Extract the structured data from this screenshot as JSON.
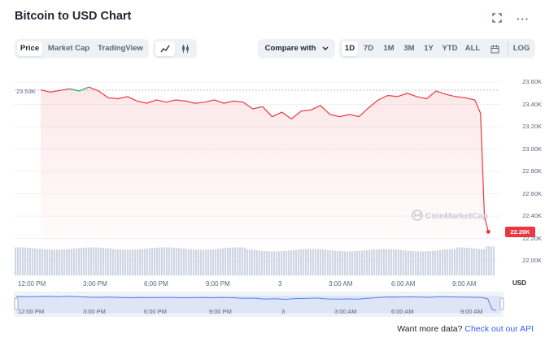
{
  "header": {
    "title": "Bitcoin to USD Chart",
    "fullscreen_icon": "fullscreen-icon",
    "more_icon": "more-icon",
    "more_glyph": "···"
  },
  "toolbar": {
    "view_tabs": [
      "Price",
      "Market Cap",
      "TradingView"
    ],
    "active_view": "Price",
    "chart_type_icons": [
      "line-chart-icon",
      "candlestick-icon"
    ],
    "compare_label": "Compare with",
    "ranges": [
      "1D",
      "7D",
      "1M",
      "3M",
      "1Y",
      "YTD",
      "ALL"
    ],
    "active_range": "1D",
    "calendar_icon": "calendar-icon",
    "log_label": "LOG"
  },
  "chart": {
    "start_label": "23.53K",
    "current_price_label": "22.26K",
    "watermark": "CoinMarketCap",
    "currency_label": "USD",
    "colors": {
      "line_down": "#ea3943",
      "line_up": "#16c784",
      "volume": "#cfd6e4",
      "navigator": "#5b7ee5"
    }
  },
  "chart_data": {
    "type": "line",
    "title": "Bitcoin to USD Chart",
    "y_tick_labels": [
      "23.60K",
      "23.40K",
      "23.20K",
      "23.00K",
      "22.80K",
      "22.60K",
      "22.40K",
      "22.20K",
      "22.00K"
    ],
    "ylim": [
      22000,
      23600
    ],
    "x_tick_labels": [
      "12:00 PM",
      "3:00 PM",
      "6:00 PM",
      "9:00 PM",
      "3",
      "3:00 AM",
      "6:00 AM",
      "9:00 AM"
    ],
    "series": [
      {
        "x": [
          0,
          0.5,
          1,
          1.5,
          2,
          2.5,
          3,
          3.5,
          4,
          4.5,
          5,
          5.5,
          6,
          6.5,
          7,
          7.5,
          8,
          8.5,
          9,
          9.5,
          10,
          10.5,
          11,
          11.5,
          12,
          12.5,
          13,
          13.5,
          14,
          14.5,
          15,
          15.5,
          16,
          16.5,
          17,
          17.5,
          18,
          18.5,
          19,
          19.5,
          20,
          20.5,
          21,
          21.5,
          22,
          22.5,
          22.8,
          23,
          23.2
        ],
        "values": [
          23530,
          23510,
          23525,
          23540,
          23520,
          23555,
          23520,
          23460,
          23450,
          23470,
          23430,
          23410,
          23440,
          23420,
          23440,
          23430,
          23410,
          23420,
          23440,
          23410,
          23430,
          23420,
          23360,
          23380,
          23290,
          23330,
          23270,
          23340,
          23350,
          23390,
          23310,
          23290,
          23310,
          23290,
          23370,
          23440,
          23480,
          23470,
          23500,
          23470,
          23450,
          23520,
          23490,
          23470,
          23460,
          23440,
          23320,
          22400,
          22260
        ]
      }
    ],
    "grid": true,
    "legend": "none"
  },
  "navigator": {
    "labels": [
      "12:00 PM",
      "3:00 PM",
      "6:00 PM",
      "9:00 PM",
      "3",
      "3:00 AM",
      "6:00 AM",
      "9:00 AM"
    ]
  },
  "footer": {
    "prompt": "Want more data?",
    "link": "Check out our API"
  }
}
